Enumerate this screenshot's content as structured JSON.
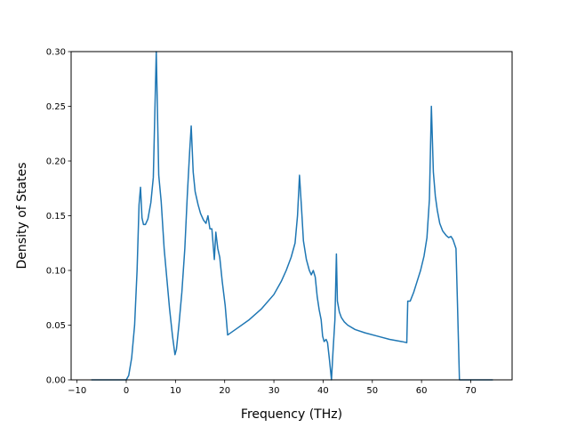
{
  "chart_data": {
    "type": "line",
    "title": "",
    "xlabel": "Frequency (THz)",
    "ylabel": "Density of States",
    "xlim": [
      -11.2,
      78.4
    ],
    "ylim": [
      0.0,
      0.3
    ],
    "grid": false,
    "legend": "none",
    "x_ticks": [
      -10,
      0,
      10,
      20,
      30,
      40,
      50,
      60,
      70
    ],
    "x_tick_labels": [
      "−10",
      "0",
      "10",
      "20",
      "30",
      "40",
      "50",
      "60",
      "70"
    ],
    "y_ticks": [
      0.0,
      0.05,
      0.1,
      0.15,
      0.2,
      0.25,
      0.3
    ],
    "y_tick_labels": [
      "0.00",
      "0.05",
      "0.10",
      "0.15",
      "0.20",
      "0.25",
      "0.30"
    ],
    "series": [
      {
        "color": "#1f77b4",
        "x": [
          -7.1,
          0.0,
          0.5,
          1.1,
          1.7,
          2.2,
          2.6,
          2.9,
          3.2,
          3.5,
          3.9,
          4.4,
          5.0,
          5.5,
          6.1,
          6.6,
          7.1,
          7.7,
          8.3,
          8.8,
          9.4,
          9.9,
          10.2,
          10.7,
          11.3,
          11.9,
          12.4,
          12.9,
          13.2,
          13.6,
          14.0,
          14.6,
          15.1,
          15.7,
          16.2,
          16.6,
          17.0,
          17.4,
          17.9,
          18.2,
          18.6,
          19.0,
          19.5,
          20.1,
          20.6,
          22.5,
          25.0,
          27.5,
          30.0,
          31.5,
          32.5,
          33.5,
          34.3,
          34.8,
          35.2,
          35.6,
          36.0,
          36.6,
          37.2,
          37.6,
          38.0,
          38.4,
          38.8,
          39.2,
          39.6,
          39.9,
          40.2,
          40.6,
          40.9,
          41.3,
          41.7,
          42.0,
          42.4,
          42.7,
          42.9,
          43.3,
          43.7,
          44.3,
          45.0,
          46.5,
          48.5,
          51.0,
          53.5,
          56.0,
          57.0,
          57.2,
          57.7,
          58.4,
          59.1,
          59.8,
          60.5,
          61.1,
          61.6,
          62.0,
          62.4,
          62.8,
          63.2,
          63.7,
          64.3,
          65.0,
          65.5,
          66.0,
          66.4,
          67.0,
          67.3,
          67.7,
          68.1,
          68.5,
          74.5
        ],
        "y": [
          0.0,
          0.0,
          0.004,
          0.02,
          0.05,
          0.1,
          0.16,
          0.176,
          0.148,
          0.142,
          0.142,
          0.147,
          0.162,
          0.185,
          0.3,
          0.187,
          0.163,
          0.12,
          0.09,
          0.065,
          0.04,
          0.023,
          0.028,
          0.05,
          0.08,
          0.12,
          0.168,
          0.21,
          0.232,
          0.19,
          0.172,
          0.16,
          0.152,
          0.146,
          0.143,
          0.15,
          0.138,
          0.138,
          0.11,
          0.135,
          0.12,
          0.112,
          0.09,
          0.068,
          0.041,
          0.047,
          0.055,
          0.065,
          0.078,
          0.09,
          0.1,
          0.112,
          0.125,
          0.15,
          0.187,
          0.158,
          0.127,
          0.11,
          0.1,
          0.096,
          0.1,
          0.094,
          0.076,
          0.064,
          0.055,
          0.04,
          0.035,
          0.037,
          0.034,
          0.018,
          0.0,
          0.025,
          0.055,
          0.115,
          0.072,
          0.062,
          0.057,
          0.053,
          0.05,
          0.046,
          0.043,
          0.04,
          0.037,
          0.035,
          0.034,
          0.072,
          0.072,
          0.08,
          0.09,
          0.1,
          0.113,
          0.13,
          0.165,
          0.25,
          0.19,
          0.168,
          0.155,
          0.143,
          0.136,
          0.132,
          0.13,
          0.131,
          0.128,
          0.12,
          0.07,
          0.0,
          0.0,
          0.0,
          0.0
        ]
      }
    ]
  }
}
